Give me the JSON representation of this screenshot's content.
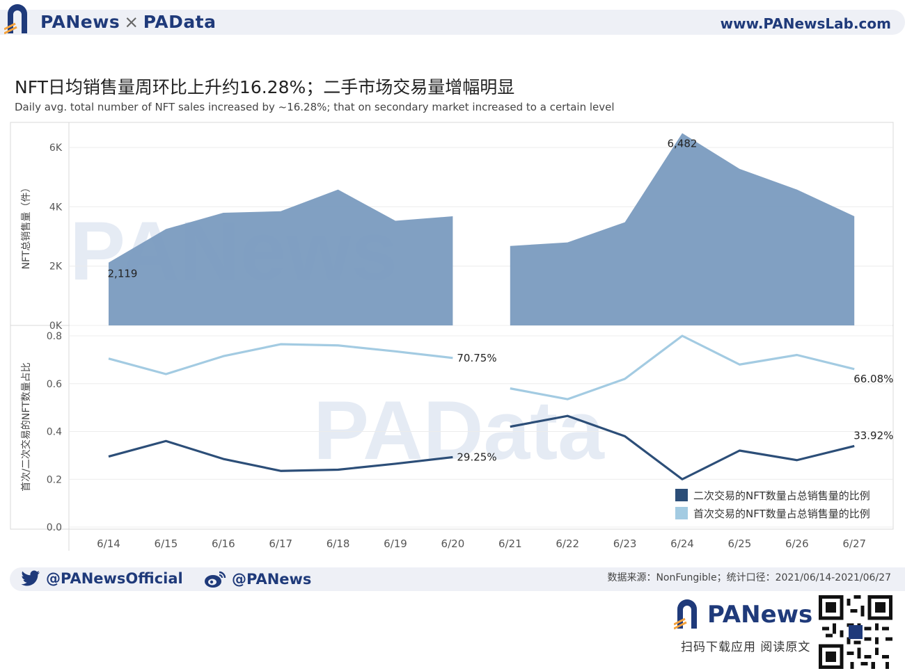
{
  "header": {
    "brand_left": "PANews",
    "brand_sep": "×",
    "brand_right": "PAData",
    "site": "www.PANewsLab.com"
  },
  "title": "NFT日均销售量周环比上升约16.28%；二手市场交易量增幅明显",
  "subtitle": "Daily avg. total number of NFT sales increased by ~16.28%; that on secondary market increased to a certain level",
  "chart_data": [
    {
      "type": "area",
      "ylabel": "NFT总销售量（件）",
      "ylim": [
        0,
        6800
      ],
      "yticks": [
        0,
        2000,
        4000,
        6000
      ],
      "ytick_labels": [
        "0K",
        "2K",
        "4K",
        "6K"
      ],
      "categories": [
        "6/14",
        "6/15",
        "6/16",
        "6/17",
        "6/18",
        "6/19",
        "6/20",
        "6/21",
        "6/22",
        "6/23",
        "6/24",
        "6/25",
        "6/26",
        "6/27"
      ],
      "values": [
        2119,
        3250,
        3800,
        3850,
        4580,
        3530,
        3680,
        2680,
        2800,
        3480,
        6482,
        5280,
        4580,
        3680
      ],
      "segments": [
        [
          0,
          6
        ],
        [
          7,
          13
        ]
      ],
      "annotations": [
        {
          "index": 0,
          "text": "2,119"
        },
        {
          "index": 10,
          "text": "6,482"
        }
      ],
      "color": "#7a9bbf",
      "grid": true
    },
    {
      "type": "line",
      "ylabel": "首次/二次交易的NFT数量占比",
      "ylim": [
        0,
        0.8
      ],
      "yticks": [
        0,
        0.2,
        0.4,
        0.6,
        0.8
      ],
      "ytick_labels": [
        "0.0",
        "0.2",
        "0.4",
        "0.6",
        "0.8"
      ],
      "categories": [
        "6/14",
        "6/15",
        "6/16",
        "6/17",
        "6/18",
        "6/19",
        "6/20",
        "6/21",
        "6/22",
        "6/23",
        "6/24",
        "6/25",
        "6/26",
        "6/27"
      ],
      "series": [
        {
          "name": "二次交易的NFT数量占总销售量的比例",
          "color": "#2c4e78",
          "values": [
            0.295,
            0.36,
            0.285,
            0.235,
            0.24,
            0.265,
            0.2925,
            0.42,
            0.465,
            0.38,
            0.2,
            0.32,
            0.28,
            0.3392
          ],
          "annotations": [
            {
              "index": 6,
              "text": "29.25%"
            },
            {
              "index": 13,
              "text": "33.92%"
            }
          ]
        },
        {
          "name": "首次交易的NFT数量占总销售量的比例",
          "color": "#a3cbe2",
          "values": [
            0.705,
            0.64,
            0.715,
            0.765,
            0.76,
            0.735,
            0.7075,
            0.58,
            0.535,
            0.62,
            0.8,
            0.68,
            0.72,
            0.6608
          ],
          "annotations": [
            {
              "index": 6,
              "text": "70.75%"
            },
            {
              "index": 13,
              "text": "66.08%"
            }
          ]
        }
      ],
      "segments": [
        [
          0,
          6
        ],
        [
          7,
          13
        ]
      ],
      "legend": "bottom-right",
      "grid": true
    }
  ],
  "footer": {
    "twitter": "@PANewsOfficial",
    "weibo": "@PANews",
    "source": "数据来源：NonFungible；统计口径：2021/06/14-2021/06/27",
    "brand": "PANews",
    "scan": "扫码下载应用  阅读原文"
  },
  "watermarks": [
    "PANews",
    "PAData"
  ]
}
